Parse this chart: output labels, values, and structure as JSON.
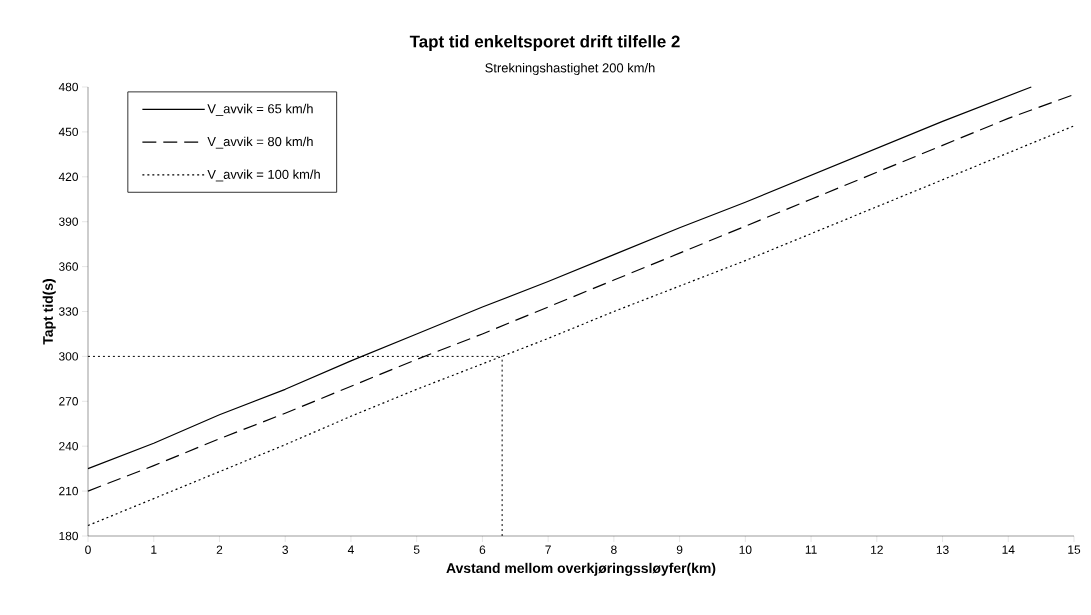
{
  "chart_data": {
    "type": "line",
    "title": "Tapt tid enkeltsporet drift tilfelle 2",
    "subtitle": "Strekningshastighet 200 km/h",
    "xlabel": "Avstand mellom overkjøringssløyfer(km)",
    "ylabel": "Tapt tid(s)",
    "xlim": [
      0,
      15
    ],
    "ylim": [
      180,
      480
    ],
    "xticks": [
      0,
      1,
      2,
      3,
      4,
      5,
      6,
      7,
      8,
      9,
      10,
      11,
      12,
      13,
      14,
      15
    ],
    "yticks": [
      180,
      210,
      240,
      270,
      300,
      330,
      360,
      390,
      420,
      450,
      480
    ],
    "legend": "top left",
    "grid": false,
    "marker": "none",
    "series": [
      {
        "name": "V_avvik = 65 km/h",
        "color": "#000000",
        "line_style": "solid",
        "x": [
          0,
          1,
          2,
          3,
          4,
          5,
          6,
          7,
          8,
          9,
          10,
          11,
          12,
          13,
          14.35
        ],
        "values": [
          225,
          242,
          261,
          278,
          297,
          315,
          333,
          350,
          368,
          386,
          403,
          421,
          439,
          457,
          480
        ]
      },
      {
        "name": "V_avvik = 80 km/h",
        "color": "#000000",
        "line_style": "dashed",
        "x": [
          0,
          1,
          2,
          3,
          4,
          5,
          6,
          7,
          8,
          9,
          10,
          11,
          12,
          13,
          14,
          15
        ],
        "values": [
          210,
          227,
          245,
          262,
          280,
          298,
          315,
          333,
          351,
          369,
          387,
          405,
          423,
          441,
          459,
          475
        ]
      },
      {
        "name": "V_avvik = 100 km/h",
        "color": "#000000",
        "line_style": "dotted",
        "x": [
          0,
          1,
          2,
          3,
          4,
          5,
          6,
          7,
          8,
          9,
          10,
          11,
          12,
          13,
          14,
          15
        ],
        "values": [
          187,
          205,
          223,
          241,
          260,
          278,
          295,
          312,
          330,
          347,
          364,
          382,
          400,
          418,
          436,
          454
        ]
      }
    ],
    "ref_lines": [
      {
        "axis": "y",
        "value": 300,
        "color": "#000000",
        "line_style": "dotted"
      },
      {
        "axis": "x",
        "value": 6.3,
        "color": "#000000",
        "line_style": "dotted"
      }
    ]
  }
}
